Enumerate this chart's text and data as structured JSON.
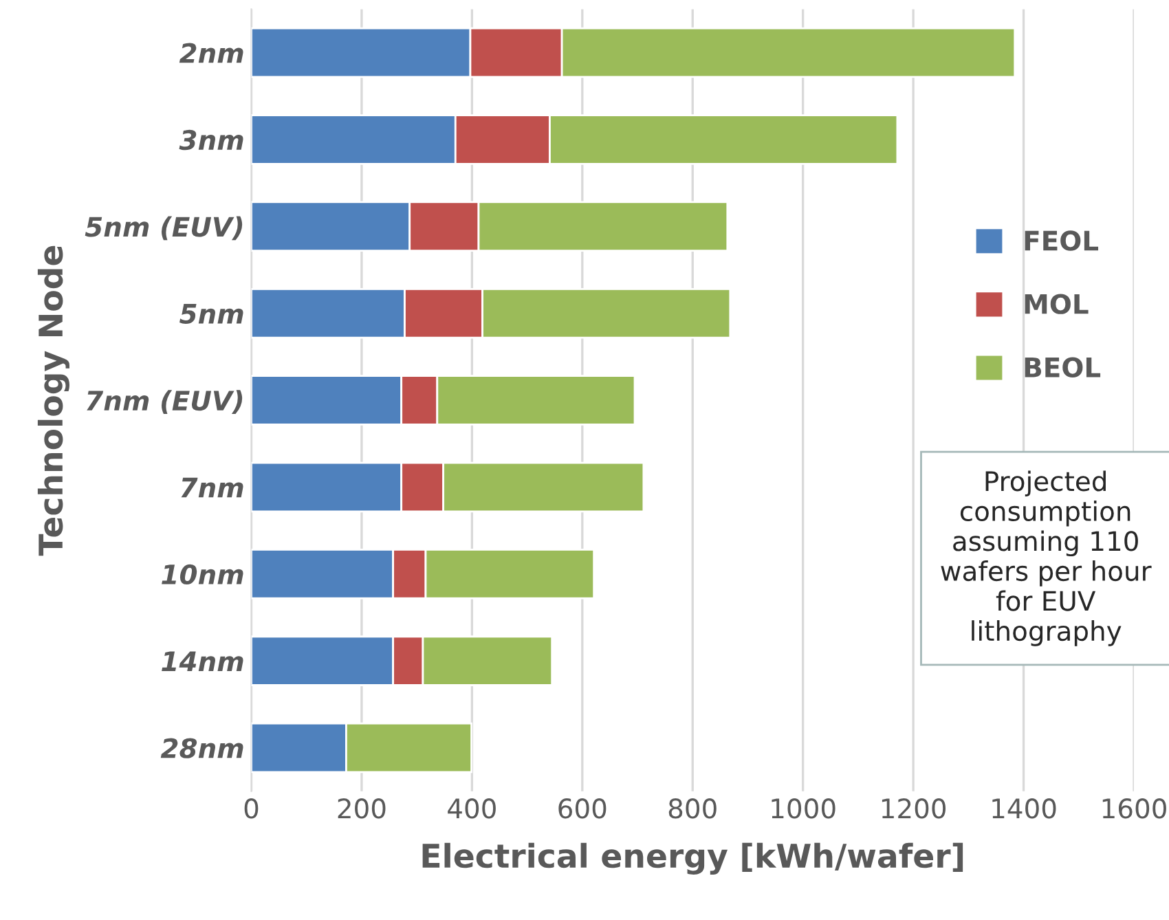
{
  "chart_data": {
    "type": "bar",
    "orientation": "horizontal",
    "stacked": true,
    "categories": [
      "2nm",
      "3nm",
      "5nm (EUV)",
      "5nm",
      "7nm (EUV)",
      "7nm",
      "10nm",
      "14nm",
      "28nm"
    ],
    "series": [
      {
        "name": "FEOL",
        "color": "#4f81bd",
        "values": [
          397,
          370,
          287,
          278,
          272,
          272,
          257,
          257,
          172
        ]
      },
      {
        "name": "MOL",
        "color": "#c0504d",
        "values": [
          166,
          171,
          125,
          141,
          65,
          76,
          59,
          54,
          0
        ]
      },
      {
        "name": "BEOL",
        "color": "#9bbb59",
        "values": [
          821,
          630,
          451,
          449,
          358,
          363,
          305,
          234,
          227
        ]
      }
    ],
    "xlabel": "Electrical energy [kWh/wafer]",
    "ylabel": "Technology Node",
    "xlim": [
      0,
      1600
    ],
    "xticks": [
      0,
      200,
      400,
      600,
      800,
      1000,
      1200,
      1400,
      1600
    ],
    "grid": "x",
    "legend": "right",
    "annotations": [
      "Projected consumption assuming 110 wafers per hour for EUV lithography"
    ]
  }
}
